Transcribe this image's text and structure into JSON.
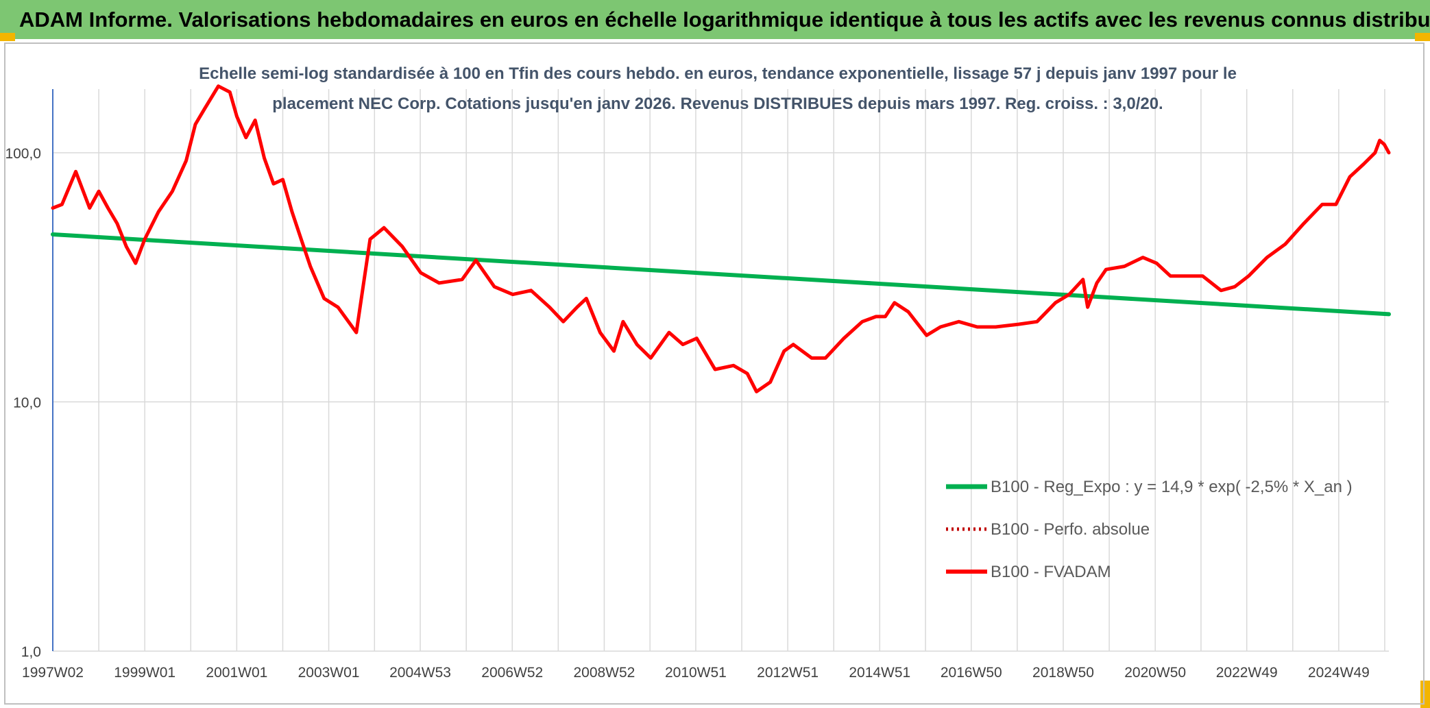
{
  "banner": {
    "title": "ADAM Informe. Valorisations hebdomadaires en euros en échelle logarithmique identique à tous les actifs avec les revenus connus distribués"
  },
  "colors": {
    "banner_bg": "#7dc672",
    "corner_accent": "#f3b500",
    "trend": "#00b050",
    "fvadam": "#ff0000",
    "perfo": "#c00000",
    "grid": "#d9d9d9",
    "axis": "#4472c4",
    "text": "#404040"
  },
  "chart_data": {
    "type": "line",
    "title_lines": [
      "Echelle semi-log standardisée à 100 en Tfin des cours hebdo. en euros, tendance exponentielle, lissage 57 j depuis janv 1997 pour le",
      "placement NEC Corp. Cotations jusqu'en janv 2026. Revenus DISTRIBUES depuis mars 1997. Reg. croiss. : 3,0/20."
    ],
    "y_scale": "log",
    "ylim": [
      1,
      180
    ],
    "y_ticks": [
      1,
      10,
      100
    ],
    "y_tick_labels": [
      "1,0",
      "10,0",
      "100,0"
    ],
    "xlim": [
      1997.0,
      2026.05
    ],
    "x_ticks": [
      1997.0,
      1999.0,
      2001.0,
      2003.0,
      2004.99,
      2006.99,
      2008.99,
      2010.98,
      2012.98,
      2014.98,
      2016.97,
      2018.97,
      2020.97,
      2022.96,
      2024.96
    ],
    "x_tick_labels": [
      "1997W02",
      "1999W01",
      "2001W01",
      "2003W01",
      "2004W53",
      "2006W52",
      "2008W52",
      "2010W51",
      "2012W51",
      "2014W51",
      "2016W50",
      "2018W50",
      "2020W50",
      "2022W49",
      "2024W49"
    ],
    "grid": true,
    "legend_position": "lower-right",
    "legend": [
      "B100 - Reg_Expo : y = 14,9 * exp( -2,5% *  X_an )",
      "B100 - Perfo. absolue",
      "B100 - FVADAM"
    ],
    "series": [
      {
        "name": "B100 - Reg_Expo : y = 14,9 * exp( -2,5% *  X_an )",
        "style": "solid-green",
        "x": [
          1997.0,
          2026.05
        ],
        "y": [
          47.0,
          22.5
        ]
      },
      {
        "name": "B100 - Perfo. absolue",
        "style": "dotted-red",
        "x": [],
        "y": []
      },
      {
        "name": "B100 - FVADAM",
        "style": "solid-red",
        "x": [
          1997.0,
          1997.2,
          1997.5,
          1997.8,
          1998.0,
          1998.2,
          1998.4,
          1998.6,
          1998.8,
          1999.0,
          1999.3,
          1999.6,
          1999.9,
          2000.1,
          2000.3,
          2000.6,
          2000.85,
          2001.0,
          2001.2,
          2001.4,
          2001.6,
          2001.8,
          2002.0,
          2002.2,
          2002.4,
          2002.6,
          2002.9,
          2003.2,
          2003.6,
          2003.9,
          2004.2,
          2004.6,
          2005.0,
          2005.4,
          2005.9,
          2006.2,
          2006.6,
          2007.0,
          2007.4,
          2007.8,
          2008.1,
          2008.4,
          2008.6,
          2008.9,
          2009.2,
          2009.4,
          2009.7,
          2010.0,
          2010.4,
          2010.7,
          2011.0,
          2011.4,
          2011.8,
          2012.1,
          2012.3,
          2012.6,
          2012.9,
          2013.1,
          2013.5,
          2013.8,
          2014.2,
          2014.6,
          2014.9,
          2015.1,
          2015.3,
          2015.6,
          2016.0,
          2016.3,
          2016.7,
          2017.1,
          2017.5,
          2018.0,
          2018.4,
          2018.8,
          2019.1,
          2019.4,
          2019.5,
          2019.7,
          2019.9,
          2020.3,
          2020.7,
          2021.0,
          2021.3,
          2021.6,
          2022.0,
          2022.4,
          2022.7,
          2023.0,
          2023.4,
          2023.8,
          2024.2,
          2024.6,
          2024.9,
          2025.2,
          2025.5,
          2025.75,
          2025.85,
          2025.95,
          2026.05
        ],
        "y": [
          60,
          62,
          84,
          60,
          70,
          60,
          52,
          42,
          36,
          45,
          58,
          70,
          93,
          130,
          150,
          185,
          175,
          140,
          115,
          135,
          95,
          75,
          78,
          58,
          45,
          35,
          26,
          24,
          19,
          45,
          50,
          42,
          33,
          30,
          31,
          37,
          29,
          27,
          28,
          24,
          21,
          24,
          26,
          19,
          16,
          21,
          17,
          15,
          19,
          17,
          18,
          13.5,
          14,
          13,
          11,
          12,
          16,
          17,
          15,
          15,
          18,
          21,
          22,
          22,
          25,
          23,
          18.5,
          20,
          21,
          20,
          20,
          20.5,
          21,
          25,
          27,
          31,
          24,
          30,
          34,
          35,
          38,
          36,
          32,
          32,
          32,
          28,
          29,
          32,
          38,
          43,
          52,
          62,
          62,
          80,
          90,
          100,
          112,
          108,
          100
        ]
      }
    ]
  }
}
